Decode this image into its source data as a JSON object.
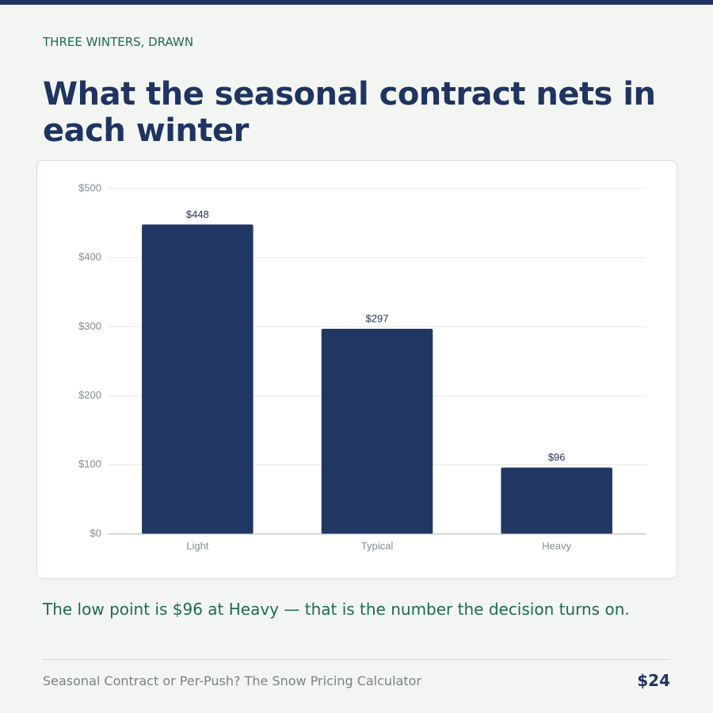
{
  "header": {
    "eyebrow": "THREE WINTERS, DRAWN"
  },
  "chart_data": {
    "type": "bar",
    "title": "What the seasonal contract nets in each winter",
    "categories": [
      "Light",
      "Typical",
      "Heavy"
    ],
    "values": [
      448,
      297,
      96
    ],
    "value_labels": [
      "$448",
      "$297",
      "$96"
    ],
    "color": "#213763",
    "ylim": [
      0,
      500
    ],
    "yticks": [
      {
        "value": 0,
        "label": "$0"
      },
      {
        "value": 100,
        "label": "$100"
      },
      {
        "value": 200,
        "label": "$200"
      },
      {
        "value": 300,
        "label": "$300"
      },
      {
        "value": 400,
        "label": "$400"
      },
      {
        "value": 500,
        "label": "$500"
      }
    ],
    "grid": true
  },
  "caption": "The low point is $96 at Heavy — that is the number the decision turns on.",
  "footer": {
    "text": "Seasonal Contract or Per-Push? The Snow Pricing Calculator",
    "price": "$24"
  }
}
